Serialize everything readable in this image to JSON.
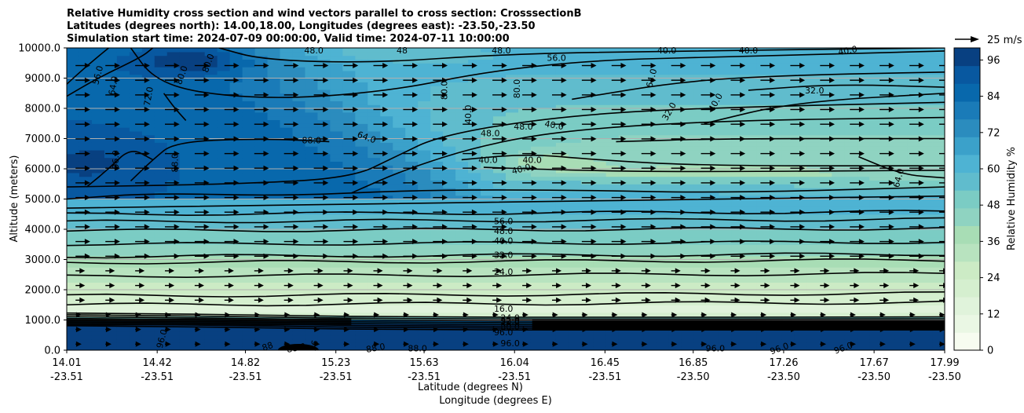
{
  "chart_data": {
    "type": "contour",
    "title_lines": [
      "Relative Humidity cross section and wind vectors parallel to cross section: CrosssectionB",
      "Latitudes (degrees north): 14.00,18.00, Longitudes (degrees east): -23.50,-23.50",
      "Simulation start time: 2024-07-09 00:00:00, Valid time: 2024-07-11 10:00:00"
    ],
    "ylabel": "Altitude (meters)",
    "xlabel_lat": "Latitude (degrees N)",
    "xlabel_lon": "Longitude (degrees E)",
    "ylim": [
      0,
      10000
    ],
    "yticks": [
      "0.0",
      "1000.0",
      "2000.0",
      "3000.0",
      "4000.0",
      "5000.0",
      "6000.0",
      "7000.0",
      "8000.0",
      "9000.0",
      "10000.0"
    ],
    "ytick_values": [
      0,
      1000,
      2000,
      3000,
      4000,
      5000,
      6000,
      7000,
      8000,
      9000,
      10000
    ],
    "xlim": [
      14.01,
      17.99
    ],
    "xtick_positions": [
      14.01,
      14.42,
      14.82,
      15.23,
      15.63,
      16.04,
      16.45,
      16.85,
      17.26,
      17.67,
      17.99
    ],
    "xticks_lat": [
      "14.01",
      "14.42",
      "14.82",
      "15.23",
      "15.63",
      "16.04",
      "16.45",
      "16.85",
      "17.26",
      "17.67",
      "17.99"
    ],
    "xticks_lon": [
      "-23.51",
      "-23.51",
      "-23.51",
      "-23.51",
      "-23.51",
      "-23.51",
      "-23.51",
      "-23.50",
      "-23.50",
      "-23.50",
      "-23.50"
    ],
    "grid": "horizontal",
    "colorbar": {
      "label": "Relative Humidity %",
      "min": 0,
      "max": 100,
      "ticks": [
        "0",
        "12",
        "24",
        "36",
        "48",
        "60",
        "72",
        "84",
        "96"
      ],
      "tick_values": [
        0,
        12,
        24,
        36,
        48,
        60,
        72,
        84,
        96
      ],
      "colors": [
        "#f7fcf0",
        "#eaf7e4",
        "#e0f3db",
        "#d5efcf",
        "#ccebc5",
        "#b8e3bf",
        "#a8ddb5",
        "#8fd3c1",
        "#7bccc4",
        "#60bccd",
        "#4eb3d3",
        "#3ba1ca",
        "#2b8cbe",
        "#1a7bb8",
        "#0868ac",
        "#0858a0",
        "#084081"
      ]
    },
    "quiver_key": {
      "label": "25 m/s",
      "speed": 25
    },
    "contour_labels": [
      {
        "text": "48.0",
        "x": 15.13,
        "y": 9920,
        "rot": 0
      },
      {
        "text": "48",
        "x": 15.53,
        "y": 9920,
        "rot": 0
      },
      {
        "text": "40.0",
        "x": 16.73,
        "y": 9920,
        "rot": 0
      },
      {
        "text": "40.0",
        "x": 17.1,
        "y": 9920,
        "rot": 0
      },
      {
        "text": "40.0",
        "x": 17.55,
        "y": 9920,
        "rot": -10
      },
      {
        "text": "48.0",
        "x": 15.98,
        "y": 9920,
        "rot": 0
      },
      {
        "text": "56.0",
        "x": 16.23,
        "y": 9680,
        "rot": 0
      },
      {
        "text": "56.0",
        "x": 14.15,
        "y": 9100,
        "rot": -75
      },
      {
        "text": "64.0",
        "x": 14.22,
        "y": 8750,
        "rot": -80
      },
      {
        "text": "72.0",
        "x": 14.38,
        "y": 8400,
        "rot": -80
      },
      {
        "text": "80.0",
        "x": 14.53,
        "y": 9100,
        "rot": -70
      },
      {
        "text": "80.0",
        "x": 14.65,
        "y": 9500,
        "rot": -70
      },
      {
        "text": "80.0",
        "x": 15.72,
        "y": 8600,
        "rot": -90
      },
      {
        "text": "80.0",
        "x": 16.05,
        "y": 8650,
        "rot": -90
      },
      {
        "text": "64.0",
        "x": 16.66,
        "y": 9000,
        "rot": -75
      },
      {
        "text": "32.0",
        "x": 17.4,
        "y": 8600,
        "rot": 0
      },
      {
        "text": "40.0",
        "x": 16.95,
        "y": 8200,
        "rot": -60
      },
      {
        "text": "32.0",
        "x": 16.74,
        "y": 7900,
        "rot": -60
      },
      {
        "text": "88.0",
        "x": 15.12,
        "y": 6950,
        "rot": 0
      },
      {
        "text": "64.0",
        "x": 15.37,
        "y": 7050,
        "rot": 20
      },
      {
        "text": "48.0",
        "x": 15.93,
        "y": 7180,
        "rot": 0
      },
      {
        "text": "48.0",
        "x": 16.08,
        "y": 7400,
        "rot": 0
      },
      {
        "text": "40.0",
        "x": 16.22,
        "y": 7450,
        "rot": 10
      },
      {
        "text": "40.0",
        "x": 15.83,
        "y": 7800,
        "rot": -90
      },
      {
        "text": "40.0",
        "x": 16.12,
        "y": 6300,
        "rot": 0
      },
      {
        "text": "40.0",
        "x": 15.92,
        "y": 6300,
        "rot": 0
      },
      {
        "text": "40.0",
        "x": 16.07,
        "y": 6000,
        "rot": -15
      },
      {
        "text": "96.0",
        "x": 14.23,
        "y": 6300,
        "rot": -90
      },
      {
        "text": "88.0",
        "x": 14.5,
        "y": 6200,
        "rot": -90
      },
      {
        "text": "64.0",
        "x": 17.78,
        "y": 5700,
        "rot": -75
      },
      {
        "text": "56.0",
        "x": 15.99,
        "y": 4270,
        "rot": 0
      },
      {
        "text": "48.0",
        "x": 15.99,
        "y": 3950,
        "rot": 0
      },
      {
        "text": "40.0",
        "x": 15.99,
        "y": 3620,
        "rot": 0
      },
      {
        "text": "32.0",
        "x": 15.99,
        "y": 3150,
        "rot": 0
      },
      {
        "text": "24.0",
        "x": 15.99,
        "y": 2600,
        "rot": 0
      },
      {
        "text": "16.0",
        "x": 15.99,
        "y": 1380,
        "rot": 0
      },
      {
        "text": "24.0",
        "x": 16.02,
        "y": 1080,
        "rot": 0
      },
      {
        "text": "32.0",
        "x": 16.02,
        "y": 980,
        "rot": 0
      },
      {
        "text": "48.0",
        "x": 16.02,
        "y": 880,
        "rot": 0
      },
      {
        "text": "80.0",
        "x": 16.02,
        "y": 780,
        "rot": 0
      },
      {
        "text": "96.0",
        "x": 15.99,
        "y": 600,
        "rot": 0
      },
      {
        "text": "96.0",
        "x": 16.02,
        "y": 230,
        "rot": 0
      },
      {
        "text": "96.0",
        "x": 14.44,
        "y": 380,
        "rot": -75
      },
      {
        "text": "88",
        "x": 14.92,
        "y": 130,
        "rot": -20
      },
      {
        "text": "88.0",
        "x": 15.05,
        "y": 80,
        "rot": -10
      },
      {
        "text": "96",
        "x": 15.13,
        "y": 150,
        "rot": -75
      },
      {
        "text": "88.0",
        "x": 15.41,
        "y": 80,
        "rot": -10
      },
      {
        "text": "88.0",
        "x": 15.6,
        "y": 60,
        "rot": 0
      },
      {
        "text": "96.0",
        "x": 16.95,
        "y": 60,
        "rot": 0
      },
      {
        "text": "96.0",
        "x": 17.24,
        "y": 60,
        "rot": -20
      },
      {
        "text": "96.0",
        "x": 17.53,
        "y": 80,
        "rot": -20
      }
    ]
  }
}
